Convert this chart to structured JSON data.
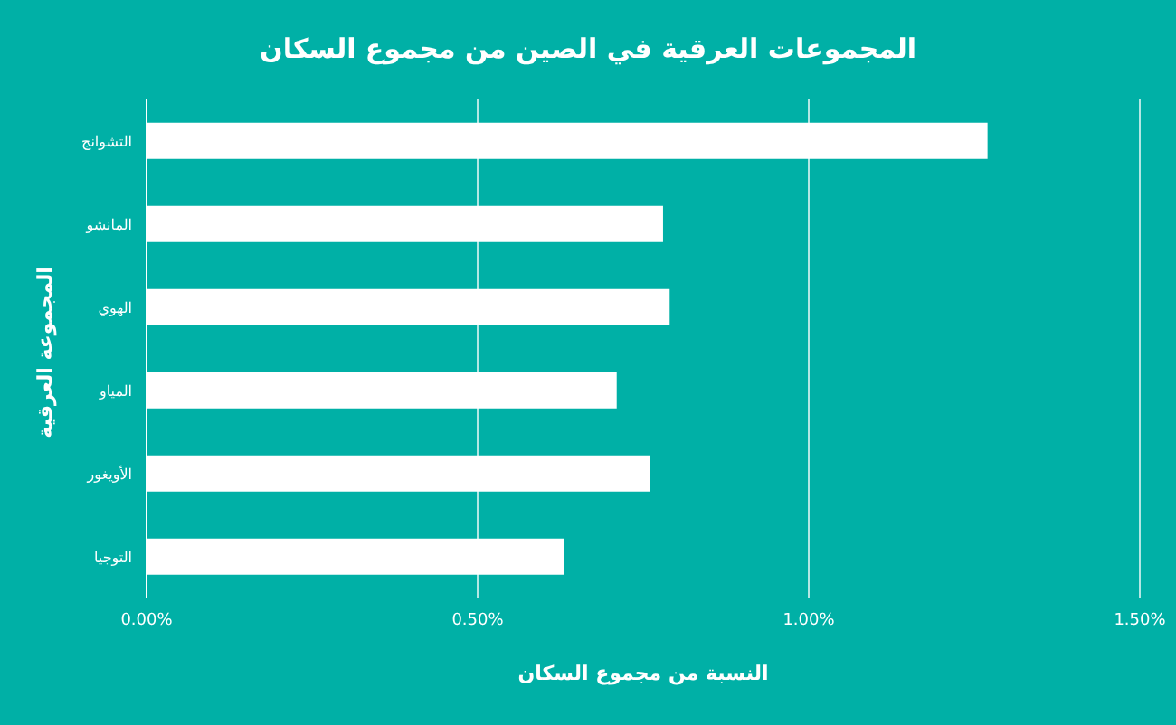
{
  "chart_data": {
    "type": "bar",
    "orientation": "horizontal",
    "title": "المجموعات العرقية في الصين من مجموع السكان",
    "xlabel": "النسبة من مجموع السكان",
    "ylabel": "المجموعة العرقية",
    "categories": [
      "التشوانج",
      "المانشو",
      "الهوي",
      "المياو",
      "الأويغور",
      "التوجيا"
    ],
    "series": [
      {
        "color": "#ffffff",
        "values": [
          1.27,
          0.78,
          0.79,
          0.71,
          0.76,
          0.63
        ]
      }
    ],
    "xlim": [
      0,
      1.5
    ],
    "xticks": [
      {
        "value": 0,
        "label": "0.00%"
      },
      {
        "value": 0.5,
        "label": "0.50%"
      },
      {
        "value": 1,
        "label": "1.00%"
      },
      {
        "value": 1.5,
        "label": "1.50%"
      }
    ],
    "grid": "x",
    "legend": false
  }
}
